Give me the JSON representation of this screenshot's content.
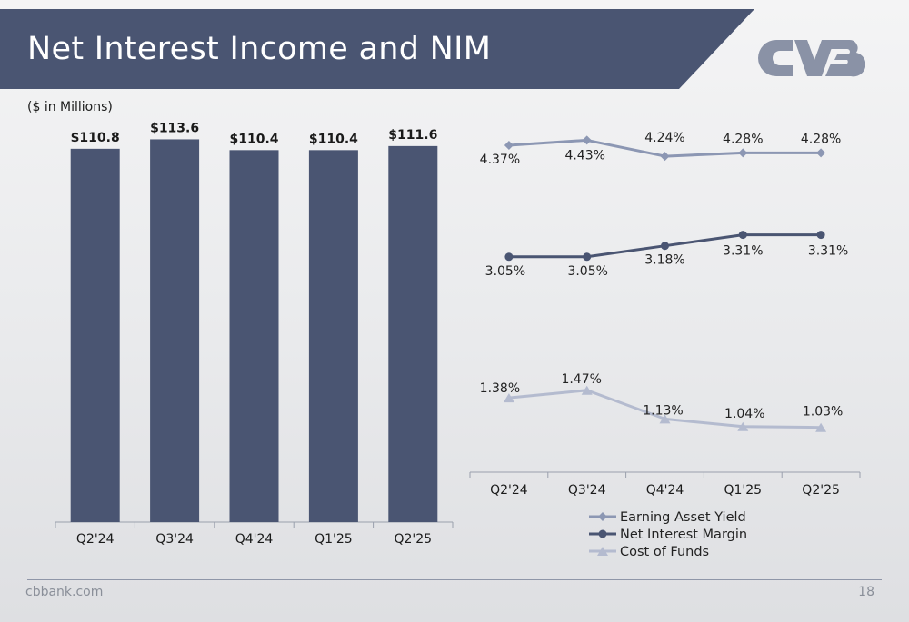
{
  "slide": {
    "title": "Net Interest Income and NIM",
    "subtitle": "($ in Millions)",
    "footer_url": "cbbank.com",
    "page_number": "18",
    "banner_color": "#4a5572",
    "logo_icon": "cvb-logo-icon"
  },
  "chart_data": [
    {
      "type": "bar",
      "title": "",
      "categories": [
        "Q2'24",
        "Q3'24",
        "Q4'24",
        "Q1'25",
        "Q2'25"
      ],
      "values": [
        110.8,
        113.6,
        110.4,
        110.4,
        111.6
      ],
      "value_labels": [
        "$110.8",
        "$113.6",
        "$110.4",
        "$110.4",
        "$111.6"
      ],
      "ylim": [
        0,
        121
      ],
      "color": "#4a5572",
      "grid": false
    },
    {
      "type": "line",
      "title": "",
      "categories": [
        "Q2'24",
        "Q3'24",
        "Q4'24",
        "Q1'25",
        "Q2'25"
      ],
      "ylim": [
        0.5,
        4.8
      ],
      "grid": false,
      "legend_position": "bottom",
      "series": [
        {
          "name": "Earning Asset Yield",
          "values": [
            4.37,
            4.43,
            4.24,
            4.28,
            4.28
          ],
          "labels": [
            "4.37%",
            "4.43%",
            "4.24%",
            "4.28%",
            "4.28%"
          ],
          "color": "#8c97b3",
          "marker": "diamond"
        },
        {
          "name": "Net Interest Margin",
          "values": [
            3.05,
            3.05,
            3.18,
            3.31,
            3.31
          ],
          "labels": [
            "3.05%",
            "3.05%",
            "3.18%",
            "3.31%",
            "3.31%"
          ],
          "color": "#4a5572",
          "marker": "circle"
        },
        {
          "name": "Cost of Funds",
          "values": [
            1.38,
            1.47,
            1.13,
            1.04,
            1.03
          ],
          "labels": [
            "1.38%",
            "1.47%",
            "1.13%",
            "1.04%",
            "1.03%"
          ],
          "color": "#b4bbcf",
          "marker": "triangle"
        }
      ]
    }
  ]
}
